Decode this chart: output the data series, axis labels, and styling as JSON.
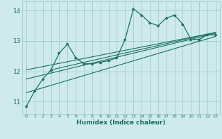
{
  "xlabel": "Humidex (Indice chaleur)",
  "ylabel": "",
  "bg_color": "#ceeaea",
  "grid_color": "#a0cdcd",
  "line_color": "#1a7060",
  "main_data_x": [
    0,
    1,
    2,
    3,
    4,
    5,
    6,
    7,
    8,
    9,
    10,
    11,
    12,
    13,
    14,
    15,
    16,
    17,
    18,
    19,
    20,
    21,
    22,
    23
  ],
  "main_data_y": [
    10.85,
    11.35,
    11.75,
    12.05,
    12.6,
    12.9,
    12.45,
    12.25,
    12.25,
    12.3,
    12.35,
    12.45,
    13.05,
    14.05,
    13.85,
    13.6,
    13.5,
    13.75,
    13.85,
    13.55,
    13.05,
    13.05,
    13.2,
    13.2
  ],
  "trend_lines": [
    {
      "x": [
        0,
        23
      ],
      "y": [
        11.3,
        13.15
      ]
    },
    {
      "x": [
        0,
        23
      ],
      "y": [
        11.75,
        13.25
      ]
    },
    {
      "x": [
        0,
        23
      ],
      "y": [
        12.05,
        13.28
      ]
    },
    {
      "x": [
        3,
        23
      ],
      "y": [
        12.05,
        13.28
      ]
    }
  ],
  "xlim": [
    -0.5,
    23.5
  ],
  "ylim": [
    10.6,
    14.3
  ],
  "yticks": [
    11,
    12,
    13,
    14
  ],
  "xticks": [
    0,
    1,
    2,
    3,
    4,
    5,
    6,
    7,
    8,
    9,
    10,
    11,
    12,
    13,
    14,
    15,
    16,
    17,
    18,
    19,
    20,
    21,
    22,
    23
  ]
}
